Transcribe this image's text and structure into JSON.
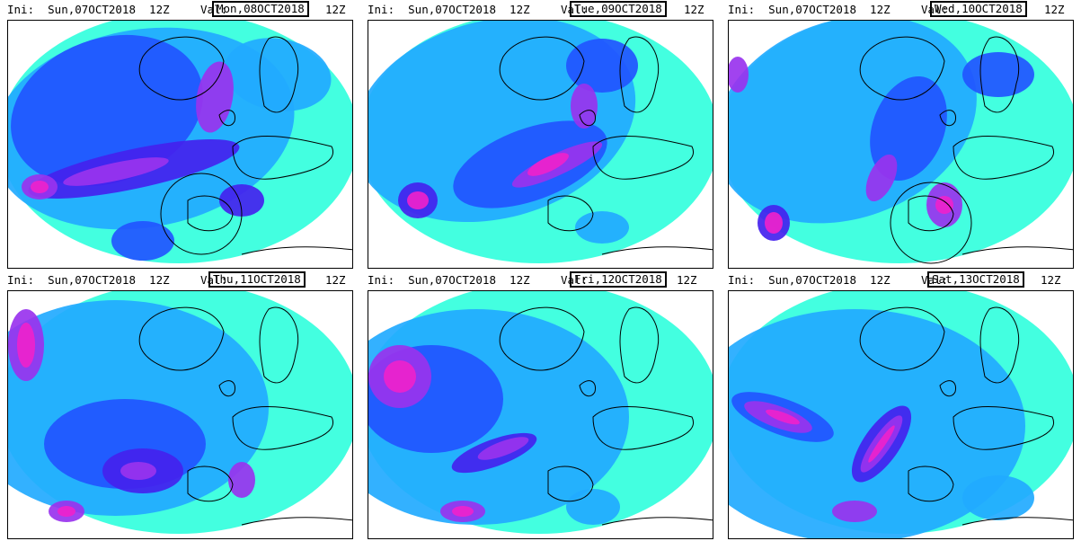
{
  "colors": {
    "light": "#33ffdd",
    "mid": "#22aaff",
    "deep": "#2255ff",
    "strong": "#4422ee",
    "intense": "#9933ee",
    "extreme": "#ee22cc",
    "coast": "#000000"
  },
  "panels": [
    {
      "ini": "Ini:  Sun,07OCT2018  12Z",
      "val_label": "Val:",
      "valid": "Mon,08OCT2018",
      "hour": "12Z",
      "circle": true
    },
    {
      "ini": "Ini:  Sun,07OCT2018  12Z",
      "val_label": "Val:",
      "valid": "Tue,09OCT2018",
      "hour": "12Z",
      "circle": false
    },
    {
      "ini": "Ini:  Sun,07OCT2018  12Z",
      "val_label": "Val:",
      "valid": "Wed,10OCT2018",
      "hour": "12Z",
      "circle": true
    },
    {
      "ini": "Ini:  Sun,07OCT2018  12Z",
      "val_label": "Val:",
      "valid": "Thu,11OCT2018",
      "hour": "12Z",
      "circle": false
    },
    {
      "ini": "Ini:  Sun,07OCT2018  12Z",
      "val_label": "Val:",
      "valid": "Fri,12OCT2018",
      "hour": "12Z",
      "circle": false
    },
    {
      "ini": "Ini:  Sun,07OCT2018  12Z",
      "val_label": "Val:",
      "valid": "Sat,13OCT2018",
      "hour": "12Z",
      "circle": false
    }
  ]
}
